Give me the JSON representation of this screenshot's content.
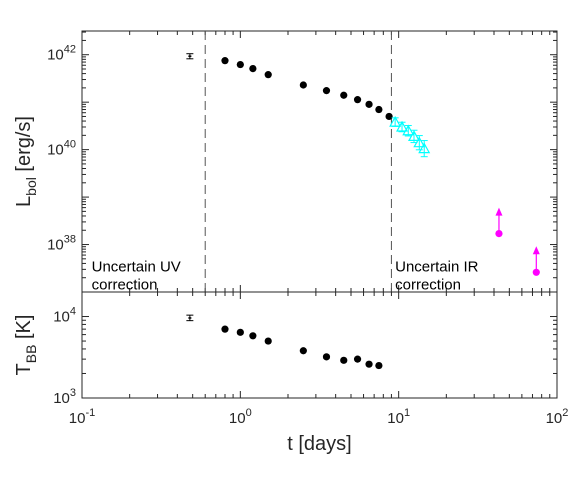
{
  "chart_data": [
    {
      "type": "scatter",
      "panel": "top",
      "xscale": "log",
      "yscale": "log",
      "xlim": [
        0.1,
        100
      ],
      "ylim": [
        1e+37,
        3.16e+42
      ],
      "ylabel_main": "L",
      "ylabel_sub": "bol",
      "ylabel_unit": " [erg/s]",
      "ytick_base": "10",
      "yticks": [
        {
          "value": 1e+38,
          "exp": "38"
        },
        {
          "value": 1e+40,
          "exp": "40"
        },
        {
          "value": 1e+42,
          "exp": "42"
        }
      ],
      "vlines": [
        0.6,
        9.0
      ],
      "annotations": [
        {
          "lines": [
            "Uncertain UV",
            "correction"
          ],
          "x": 0.115,
          "y": 2.7e+37
        },
        {
          "lines": [
            "Uncertain IR",
            "correction"
          ],
          "x": 9.5,
          "y": 2.7e+37
        }
      ],
      "colors": {
        "black": "#000000",
        "cyan": "#00ffff",
        "magenta": "#ff00ff",
        "vline": "#555555"
      },
      "series": [
        {
          "marker": "errorbar",
          "color": "#000000",
          "points": [
            {
              "x": 0.48,
              "y": 9.3e+41,
              "ylo": 8.2e+41,
              "yhi": 1.05e+42
            }
          ]
        },
        {
          "marker": "circle",
          "color": "#000000",
          "points": [
            {
              "x": 0.8,
              "y": 7.5e+41
            },
            {
              "x": 1.0,
              "y": 6.2e+41
            },
            {
              "x": 1.2,
              "y": 5.1e+41
            },
            {
              "x": 1.5,
              "y": 3.8e+41
            },
            {
              "x": 2.5,
              "y": 2.3e+41
            },
            {
              "x": 3.5,
              "y": 1.75e+41
            },
            {
              "x": 4.5,
              "y": 1.4e+41
            },
            {
              "x": 5.5,
              "y": 1.13e+41
            },
            {
              "x": 6.5,
              "y": 9e+40
            },
            {
              "x": 7.5,
              "y": 7e+40
            },
            {
              "x": 8.7,
              "y": 5e+40
            }
          ]
        },
        {
          "marker": "triangle",
          "color": "#00ffff",
          "points": [
            {
              "x": 9.5,
              "y": 3.8e+40,
              "err": 0.09
            },
            {
              "x": 10.5,
              "y": 3e+40,
              "err": 0.1
            },
            {
              "x": 11.5,
              "y": 2.5e+40,
              "err": 0.11
            },
            {
              "x": 12.5,
              "y": 1.9e+40,
              "err": 0.13
            },
            {
              "x": 13.5,
              "y": 1.4e+40,
              "err": 0.15
            },
            {
              "x": 14.5,
              "y": 1.05e+40,
              "err": 0.17
            }
          ]
        },
        {
          "marker": "lowerlimit",
          "color": "#ff00ff",
          "points": [
            {
              "x": 43,
              "y": 1.7e+38
            },
            {
              "x": 74,
              "y": 2.6e+37
            }
          ]
        }
      ]
    },
    {
      "type": "scatter",
      "panel": "bottom",
      "xscale": "log",
      "yscale": "log",
      "xlim": [
        0.1,
        100
      ],
      "ylim": [
        1000,
        20000
      ],
      "xlabel": "t [days]",
      "ylabel_main": "T",
      "ylabel_sub": "BB",
      "ylabel_unit": " [K]",
      "ytick_base": "10",
      "yticks": [
        {
          "value": 1000,
          "exp": "3"
        },
        {
          "value": 10000,
          "exp": "4"
        }
      ],
      "xticks": [
        {
          "value": 0.1,
          "base": "10",
          "exp": "-1"
        },
        {
          "value": 1,
          "base": "10",
          "exp": "0"
        },
        {
          "value": 10,
          "base": "10",
          "exp": "1"
        },
        {
          "value": 100,
          "base": "10",
          "exp": "2"
        }
      ],
      "series": [
        {
          "marker": "errorbar",
          "color": "#000000",
          "points": [
            {
              "x": 0.48,
              "y": 9600,
              "ylo": 8900,
              "yhi": 10400
            }
          ]
        },
        {
          "marker": "circle",
          "color": "#000000",
          "points": [
            {
              "x": 0.8,
              "y": 7000
            },
            {
              "x": 1.0,
              "y": 6400
            },
            {
              "x": 1.2,
              "y": 5800
            },
            {
              "x": 1.5,
              "y": 5000
            },
            {
              "x": 2.5,
              "y": 3800
            },
            {
              "x": 3.5,
              "y": 3200
            },
            {
              "x": 4.5,
              "y": 2900
            },
            {
              "x": 5.5,
              "y": 3000
            },
            {
              "x": 6.5,
              "y": 2600
            },
            {
              "x": 7.5,
              "y": 2500
            }
          ]
        }
      ]
    }
  ]
}
